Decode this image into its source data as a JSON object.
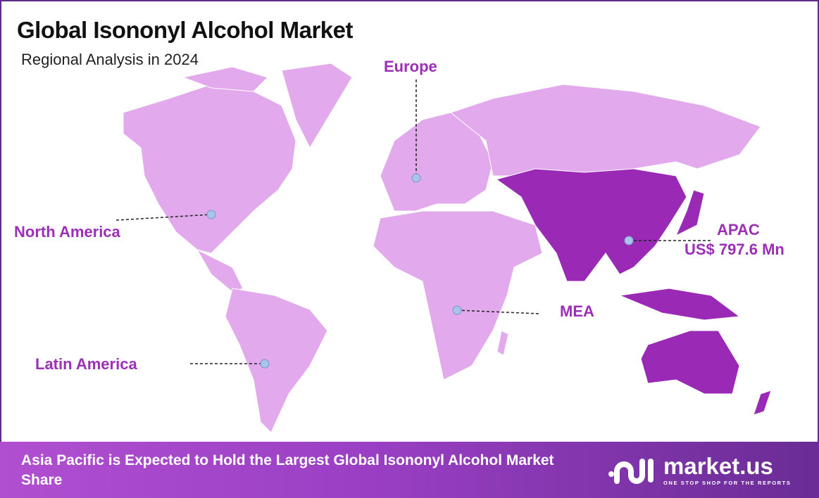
{
  "header": {
    "title": "Global Isononyl Alcohol Market",
    "subtitle": "Regional Analysis in 2024"
  },
  "regions": [
    {
      "name": "North America",
      "highlighted": false
    },
    {
      "name": "Europe",
      "highlighted": false
    },
    {
      "name": "APAC",
      "value": "US$ 797.6 Mn",
      "highlighted": true
    },
    {
      "name": "MEA",
      "highlighted": false
    },
    {
      "name": "Latin America",
      "highlighted": false
    }
  ],
  "colors": {
    "land": "#e2a9ec",
    "highlight": "#9a2ab6",
    "label": "#9b2fb5",
    "marker": "#a9c4ea"
  },
  "footer": {
    "text": "Asia Pacific is Expected to Hold the Largest Global Isononyl Alcohol Market Share",
    "brand": "market.us",
    "tagline": "ONE STOP SHOP FOR THE REPORTS"
  }
}
